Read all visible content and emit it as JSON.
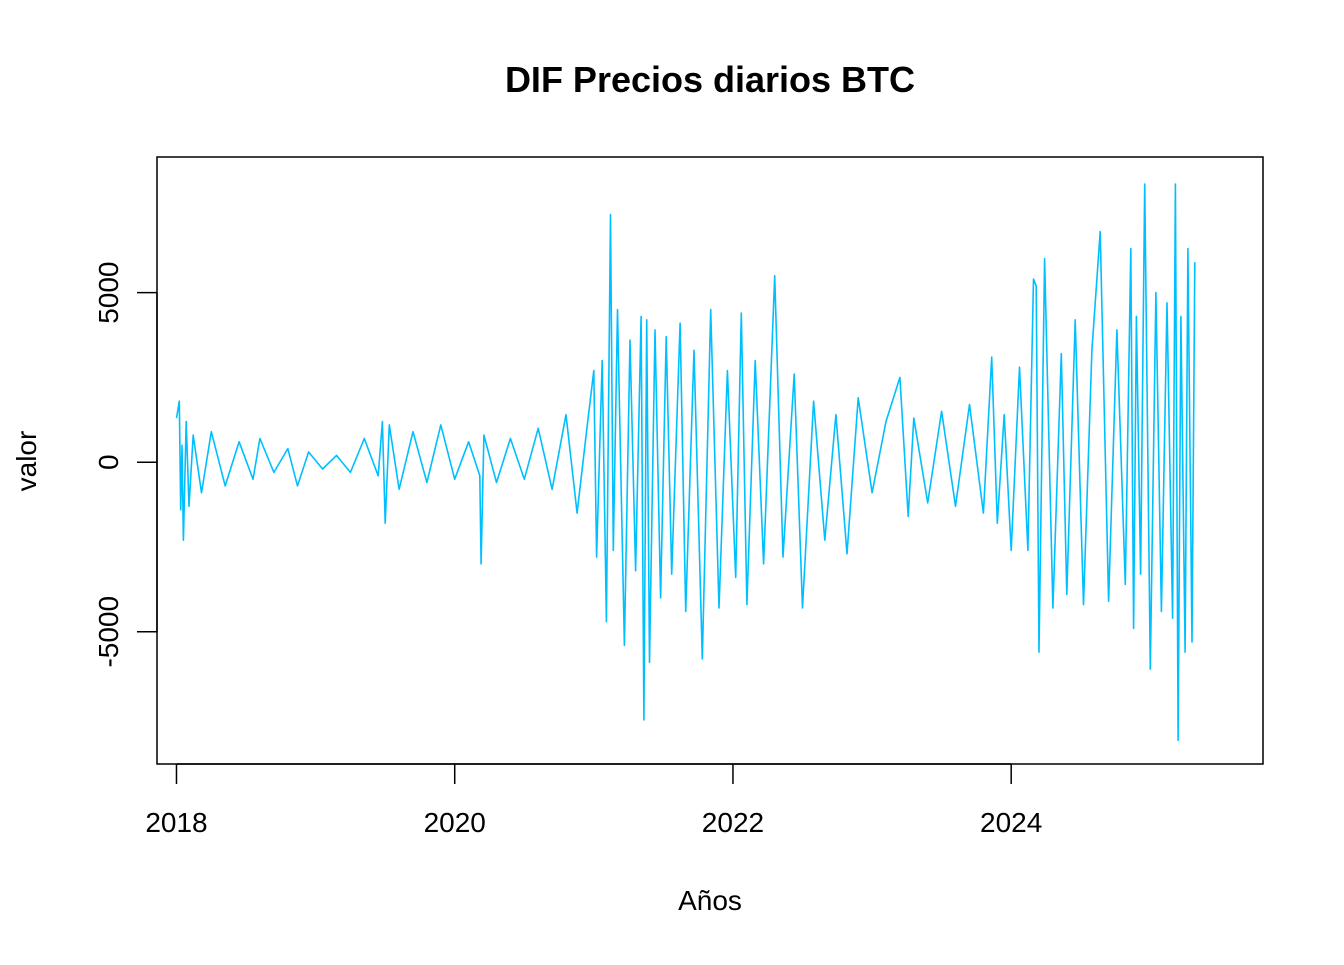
{
  "chart_data": {
    "type": "line",
    "title": "DIF Precios diarios BTC",
    "xlabel": "Años",
    "ylabel": "valor",
    "xlim": [
      2017.86,
      2025.81
    ],
    "ylim": [
      -8900,
      9000
    ],
    "x_ticks": [
      {
        "value": 2018,
        "label": "2018"
      },
      {
        "value": 2020,
        "label": "2020"
      },
      {
        "value": 2022,
        "label": "2022"
      },
      {
        "value": 2024,
        "label": "2024"
      }
    ],
    "y_ticks": [
      {
        "value": -5000,
        "label": "-5000"
      },
      {
        "value": 0,
        "label": "0"
      },
      {
        "value": 5000,
        "label": "5000"
      }
    ],
    "grid": false,
    "legend": "none",
    "line_color": "#00BFFF",
    "series": [
      {
        "x": [
          2018.0,
          2018.02,
          2018.03,
          2018.04,
          2018.05,
          2018.07,
          2018.09,
          2018.12,
          2018.18,
          2018.25,
          2018.35,
          2018.45,
          2018.55,
          2018.6,
          2018.7,
          2018.8,
          2018.87,
          2018.95,
          2019.05,
          2019.15,
          2019.25,
          2019.35,
          2019.45,
          2019.48,
          2019.5,
          2019.53,
          2019.6,
          2019.7,
          2019.8,
          2019.9,
          2020.0,
          2020.1,
          2020.18,
          2020.19,
          2020.21,
          2020.3,
          2020.4,
          2020.5,
          2020.6,
          2020.7,
          2020.8,
          2020.88,
          2020.95,
          2021.0,
          2021.02,
          2021.06,
          2021.09,
          2021.12,
          2021.14,
          2021.17,
          2021.22,
          2021.26,
          2021.3,
          2021.34,
          2021.36,
          2021.38,
          2021.4,
          2021.44,
          2021.48,
          2021.52,
          2021.56,
          2021.62,
          2021.66,
          2021.72,
          2021.78,
          2021.84,
          2021.9,
          2021.96,
          2022.02,
          2022.06,
          2022.1,
          2022.16,
          2022.22,
          2022.3,
          2022.36,
          2022.44,
          2022.5,
          2022.58,
          2022.66,
          2022.74,
          2022.82,
          2022.9,
          2023.0,
          2023.1,
          2023.2,
          2023.26,
          2023.3,
          2023.4,
          2023.5,
          2023.6,
          2023.7,
          2023.8,
          2023.86,
          2023.9,
          2023.95,
          2024.0,
          2024.06,
          2024.12,
          2024.16,
          2024.18,
          2024.2,
          2024.24,
          2024.3,
          2024.36,
          2024.4,
          2024.46,
          2024.52,
          2024.58,
          2024.64,
          2024.7,
          2024.76,
          2024.82,
          2024.86,
          2024.88,
          2024.9,
          2024.93,
          2024.96,
          2025.0,
          2025.04,
          2025.08,
          2025.12,
          2025.16,
          2025.18,
          2025.2,
          2025.22,
          2025.25,
          2025.27,
          2025.3,
          2025.32
        ],
        "y": [
          1300,
          1800,
          -1400,
          500,
          -2300,
          1200,
          -1300,
          800,
          -900,
          900,
          -700,
          600,
          -500,
          700,
          -300,
          400,
          -700,
          300,
          -200,
          200,
          -300,
          700,
          -400,
          1200,
          -1800,
          1100,
          -800,
          900,
          -600,
          1100,
          -500,
          600,
          -400,
          -3000,
          800,
          -600,
          700,
          -500,
          1000,
          -800,
          1400,
          -1500,
          1000,
          2700,
          -2800,
          3000,
          -4700,
          7300,
          -2600,
          4500,
          -5400,
          3600,
          -3200,
          4300,
          -7600,
          4200,
          -5900,
          3900,
          -4000,
          3700,
          -3300,
          4100,
          -4400,
          3300,
          -5800,
          4500,
          -4300,
          2700,
          -3400,
          4400,
          -4200,
          3000,
          -3000,
          5500,
          -2800,
          2600,
          -4300,
          1800,
          -2300,
          1400,
          -2700,
          1900,
          -900,
          1200,
          2500,
          -1600,
          1300,
          -1200,
          1500,
          -1300,
          1700,
          -1500,
          3100,
          -1800,
          1400,
          -2600,
          2800,
          -2600,
          5400,
          5200,
          -5600,
          6000,
          -4300,
          3200,
          -3900,
          4200,
          -4200,
          3300,
          6800,
          -4100,
          3900,
          -3600,
          6300,
          -4900,
          4300,
          -3300,
          8200,
          -6100,
          5000,
          -4400,
          4700,
          -4600,
          8200,
          -8200,
          4300,
          -5600,
          6300,
          -5300,
          5900
        ]
      }
    ]
  }
}
